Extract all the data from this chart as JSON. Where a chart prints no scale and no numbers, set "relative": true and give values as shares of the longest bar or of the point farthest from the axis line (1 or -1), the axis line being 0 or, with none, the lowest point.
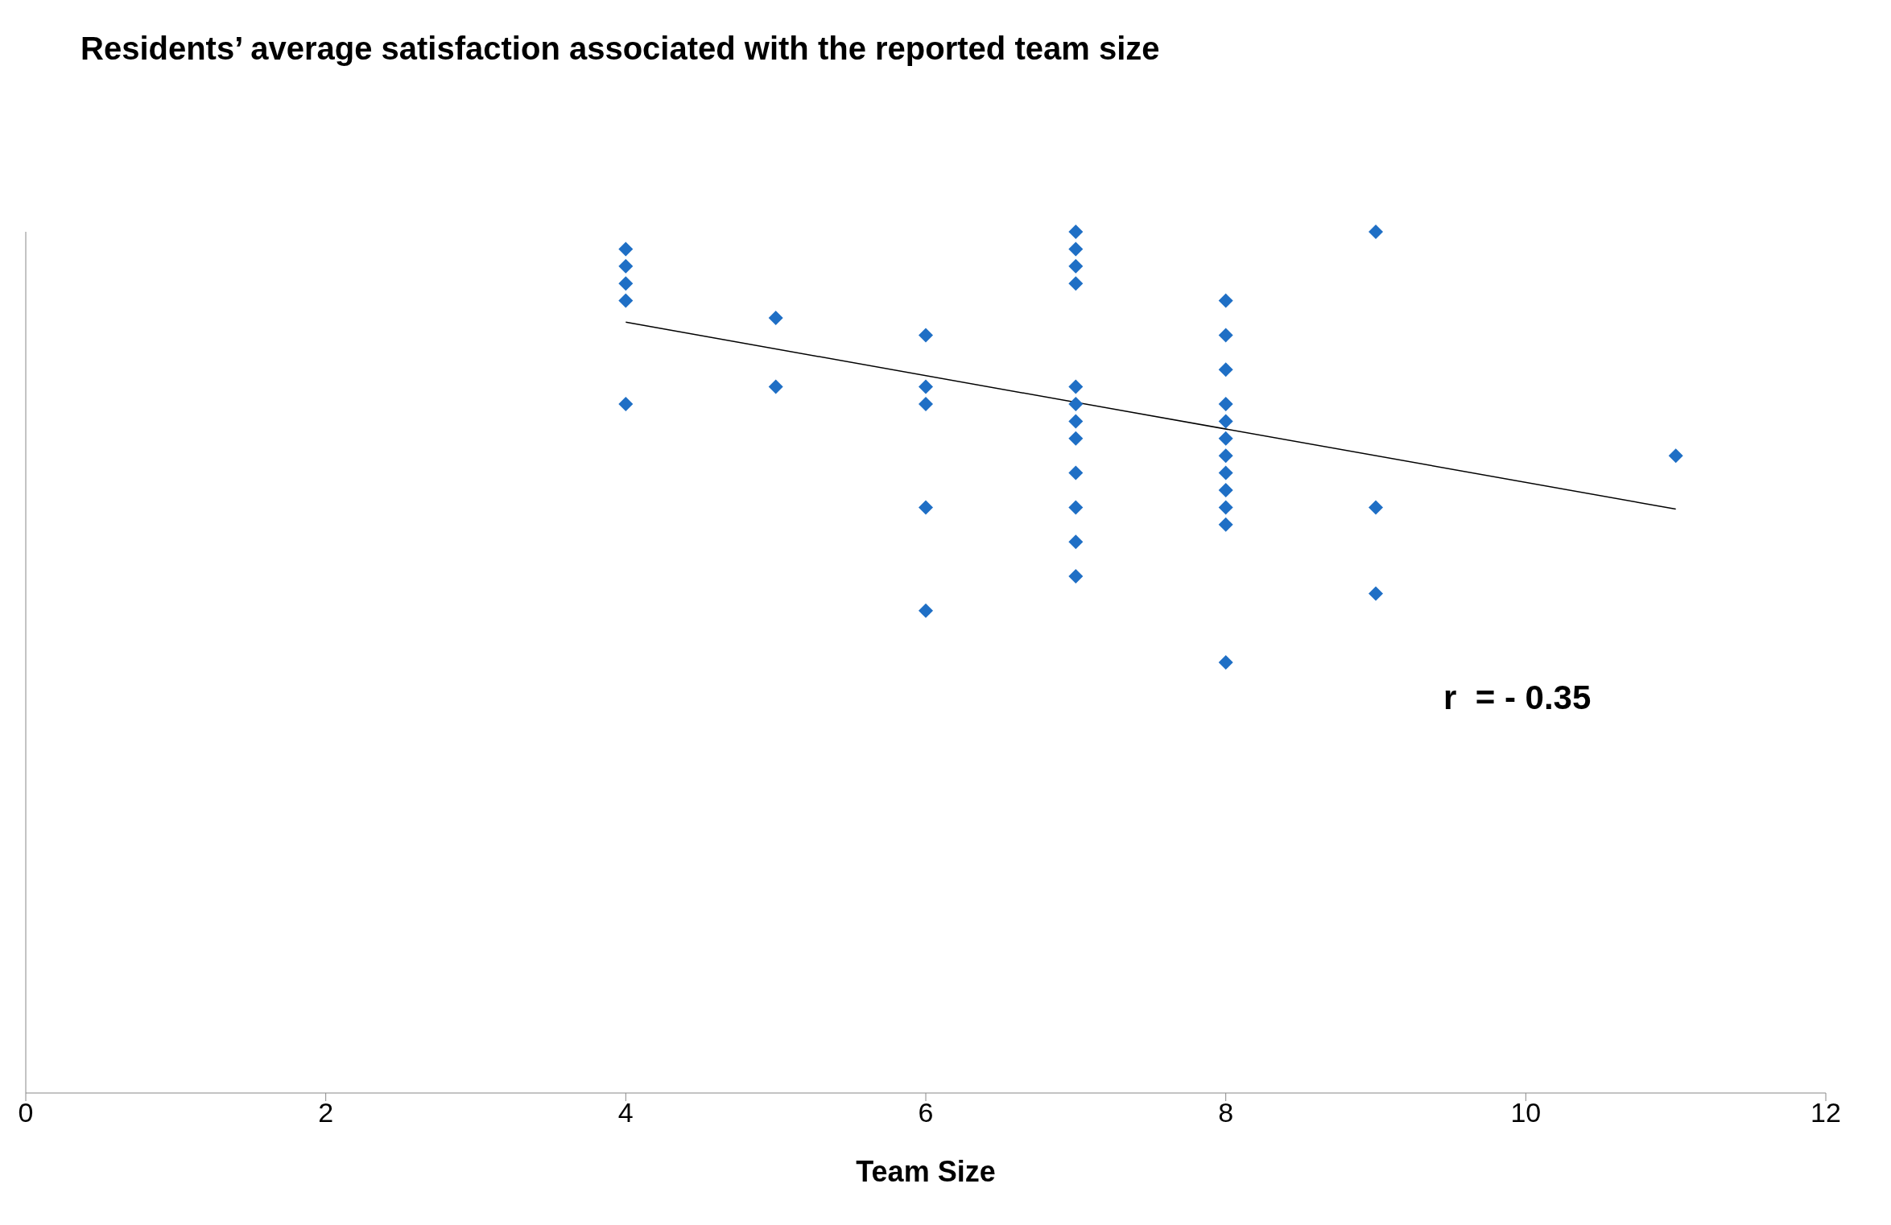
{
  "chart_data": {
    "type": "scatter",
    "title": "Residents’ average satisfaction associated with the reported team size",
    "xlabel": "Team Size",
    "relative": true,
    "xlim": [
      0,
      12
    ],
    "xticks": [
      0,
      2,
      4,
      6,
      8,
      10,
      12
    ],
    "grid": false,
    "legend": false,
    "marker": "diamond",
    "annotations": [
      "r  = - 0.35"
    ],
    "series": [
      {
        "color": "#1f6fc5",
        "x": [
          4,
          4,
          4,
          4,
          4,
          5,
          5,
          6,
          6,
          6,
          6,
          6,
          7,
          7,
          7,
          7,
          7,
          7,
          7,
          7,
          7,
          7,
          7,
          7,
          8,
          8,
          8,
          8,
          8,
          8,
          8,
          8,
          8,
          8,
          8,
          8,
          9,
          9,
          9,
          11
        ],
        "values": [
          0.98,
          0.96,
          0.94,
          0.92,
          0.8,
          0.9,
          0.82,
          0.88,
          0.82,
          0.8,
          0.68,
          0.56,
          1,
          0.98,
          0.96,
          0.94,
          0.82,
          0.8,
          0.78,
          0.76,
          0.72,
          0.68,
          0.64,
          0.6,
          0.92,
          0.88,
          0.84,
          0.8,
          0.78,
          0.76,
          0.74,
          0.72,
          0.7,
          0.68,
          0.66,
          0.5,
          1,
          0.68,
          0.58,
          0.74
        ]
      },
      {
        "type": "line",
        "color": "#000000",
        "marker": "none",
        "line_style": "solid",
        "x": [
          4,
          11
        ],
        "values": [
          0.895,
          0.678
        ]
      }
    ]
  }
}
